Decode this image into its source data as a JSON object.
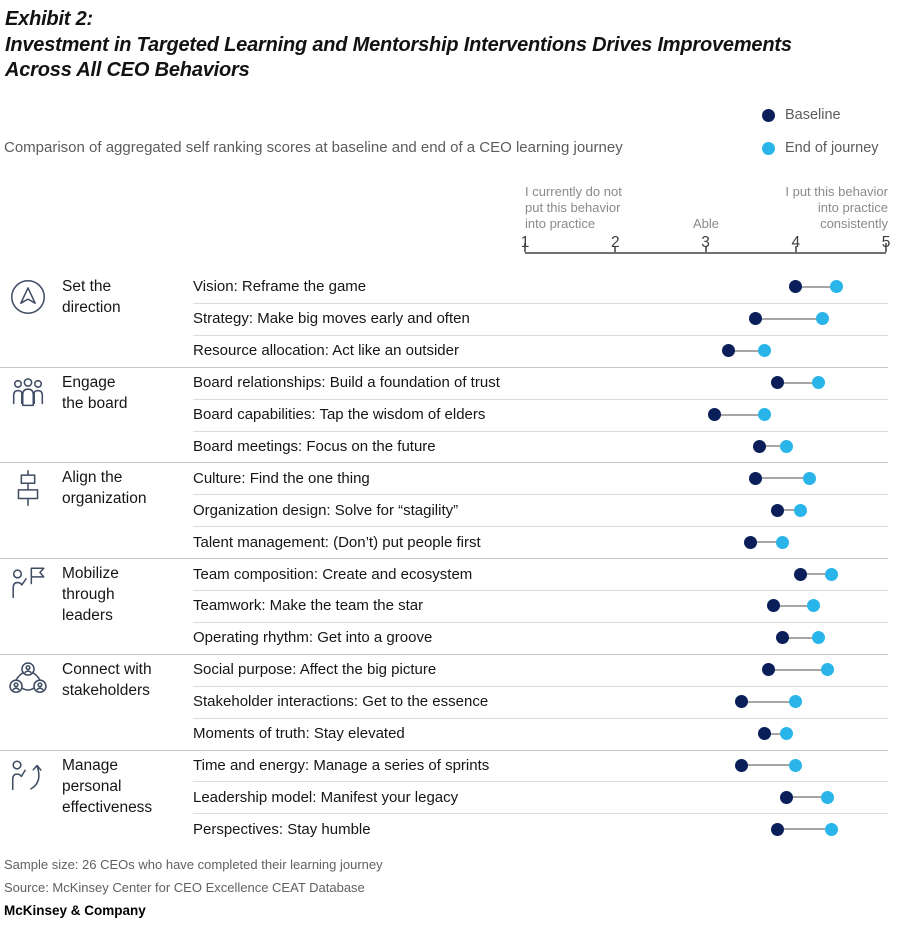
{
  "header": {
    "exhibit_label": "Exhibit 2:",
    "title_line1": "Investment in Targeted Learning and Mentorship Interventions Drives Improvements",
    "title_line2": "Across All CEO Behaviors",
    "subtitle": "Comparison of aggregated self ranking scores at baseline and end of a CEO learning journey"
  },
  "legend": {
    "baseline": {
      "label": "Baseline",
      "color": "#0a1e5a"
    },
    "end": {
      "label": "End of journey",
      "color": "#29b5ea"
    }
  },
  "chart_data": {
    "type": "dumbbell-dot",
    "series": [
      {
        "name": "Baseline",
        "color": "#0a1e5a"
      },
      {
        "name": "End of journey",
        "color": "#29b5ea"
      }
    ],
    "xlim": [
      1,
      5
    ],
    "axis": {
      "min": 1,
      "max": 5,
      "ticks": [
        "1",
        "2",
        "3",
        "4",
        "5"
      ],
      "label_left": "I currently do not\nput this behavior\ninto practice",
      "label_mid": "Able",
      "label_right": "I put this behavior\ninto practice\nconsistently"
    },
    "grid": "row-separators",
    "legend_position": "top-right",
    "groups": [
      {
        "name": "Set the\ndirection",
        "icon": "compass-arrow-icon",
        "behaviors": [
          {
            "label": "Vision: Reframe the game",
            "baseline": 4.0,
            "end": 4.45
          },
          {
            "label": "Strategy: Make big moves early and often",
            "baseline": 3.55,
            "end": 4.3
          },
          {
            "label": "Resource allocation: Act like an outsider",
            "baseline": 3.25,
            "end": 3.65
          }
        ]
      },
      {
        "name": "Engage\nthe board",
        "icon": "board-people-icon",
        "behaviors": [
          {
            "label": "Board relationships: Build a foundation of trust",
            "baseline": 3.8,
            "end": 4.25
          },
          {
            "label": "Board capabilities: Tap the wisdom of elders",
            "baseline": 3.1,
            "end": 3.65
          },
          {
            "label": "Board meetings: Focus on the future",
            "baseline": 3.6,
            "end": 3.9
          }
        ]
      },
      {
        "name": "Align the\norganization",
        "icon": "org-alignment-icon",
        "behaviors": [
          {
            "label": "Culture: Find the one thing",
            "baseline": 3.55,
            "end": 4.15
          },
          {
            "label": "Organization design: Solve for “stagility”",
            "baseline": 3.8,
            "end": 4.05
          },
          {
            "label": "Talent management: (Don’t) put people first",
            "baseline": 3.5,
            "end": 3.85
          }
        ]
      },
      {
        "name": "Mobilize\nthrough\nleaders",
        "icon": "flag-person-icon",
        "behaviors": [
          {
            "label": "Team composition: Create and ecosystem",
            "baseline": 4.05,
            "end": 4.4
          },
          {
            "label": "Teamwork: Make the team the star",
            "baseline": 3.75,
            "end": 4.2
          },
          {
            "label": "Operating rhythm: Get into a groove",
            "baseline": 3.85,
            "end": 4.25
          }
        ]
      },
      {
        "name": "Connect with\nstakeholders",
        "icon": "stakeholder-network-icon",
        "behaviors": [
          {
            "label": "Social purpose: Affect the big picture",
            "baseline": 3.7,
            "end": 4.35
          },
          {
            "label": "Stakeholder interactions: Get to the essence",
            "baseline": 3.4,
            "end": 4.0
          },
          {
            "label": "Moments of truth: Stay elevated",
            "baseline": 3.65,
            "end": 3.9
          }
        ]
      },
      {
        "name": "Manage\npersonal\neffectiveness",
        "icon": "growth-person-icon",
        "behaviors": [
          {
            "label": "Time and energy: Manage a series of sprints",
            "baseline": 3.4,
            "end": 4.0
          },
          {
            "label": "Leadership model: Manifest your legacy",
            "baseline": 3.9,
            "end": 4.35
          },
          {
            "label": "Perspectives: Stay humble",
            "baseline": 3.8,
            "end": 4.4
          }
        ]
      }
    ]
  },
  "footer": {
    "sample": "Sample size: 26 CEOs who have completed their learning journey",
    "source": "Source: McKinsey Center for CEO Excellence CEAT Database",
    "brand": "McKinsey & Company"
  }
}
